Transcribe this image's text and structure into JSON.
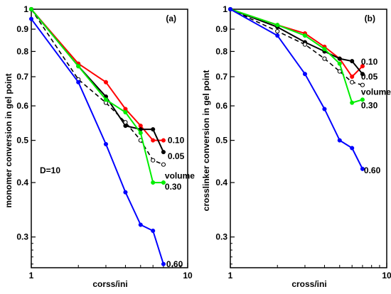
{
  "chart_data": [
    {
      "type": "line",
      "panel_tag": "(a)",
      "xlabel": "corss/ini",
      "ylabel": "monomer conversion in gel point",
      "x_scale": "log",
      "y_scale": "log",
      "xlim": [
        1,
        10
      ],
      "ylim": [
        0.255,
        1.0
      ],
      "x_ticks": [
        1,
        10
      ],
      "y_ticks": [
        0.3,
        0.4,
        0.5,
        0.6,
        0.7,
        0.8,
        0.9,
        1
      ],
      "y_tick_labels": [
        "0.3",
        "0.4",
        "0.5",
        "0.6",
        "0.7",
        "0.8",
        "0.9",
        "1"
      ],
      "annotation": "D=10",
      "grid": false,
      "series": [
        {
          "name": "0.10",
          "color": "#ff0000",
          "style": "solid",
          "marker": "dot",
          "x": [
            1,
            2,
            3,
            4,
            5,
            6,
            7
          ],
          "y": [
            1.0,
            0.75,
            0.68,
            0.59,
            0.54,
            0.5,
            0.5
          ]
        },
        {
          "name": "0.05",
          "color": "#000000",
          "style": "solid",
          "marker": "dot",
          "x": [
            1,
            2,
            3,
            4,
            5,
            6,
            7
          ],
          "y": [
            1.0,
            0.74,
            0.63,
            0.54,
            0.53,
            0.53,
            0.47
          ]
        },
        {
          "name": "volume",
          "color": "#000000",
          "style": "dashed",
          "marker": "open-circle",
          "x": [
            1,
            2,
            3,
            4,
            5,
            6,
            7
          ],
          "y": [
            1.0,
            0.69,
            0.61,
            0.55,
            0.5,
            0.45,
            0.44
          ]
        },
        {
          "name": "0.30",
          "color": "#00ee00",
          "style": "solid",
          "marker": "dot",
          "x": [
            1,
            2,
            3,
            4,
            5,
            6,
            7
          ],
          "y": [
            1.0,
            0.74,
            0.62,
            0.58,
            0.52,
            0.4,
            0.4
          ]
        },
        {
          "name": "0.60",
          "color": "#0000ff",
          "style": "solid",
          "marker": "dot",
          "x": [
            1,
            2,
            3,
            4,
            5,
            6,
            7
          ],
          "y": [
            0.95,
            0.68,
            0.49,
            0.38,
            0.32,
            0.31,
            0.26
          ]
        }
      ]
    },
    {
      "type": "line",
      "panel_tag": "(b)",
      "xlabel": "cross/ini",
      "ylabel": "crosslinker conversion in gel point",
      "x_scale": "log",
      "y_scale": "log",
      "xlim": [
        1,
        10
      ],
      "ylim": [
        0.255,
        1.0
      ],
      "x_ticks": [
        1,
        10
      ],
      "y_ticks": [
        0.3,
        0.4,
        0.5,
        0.6,
        0.7,
        0.8,
        0.9,
        1
      ],
      "y_tick_labels": [
        "0.3",
        "0.4",
        "0.5",
        "0.6",
        "0.7",
        "0.8",
        "0.9",
        "1"
      ],
      "grid": false,
      "series": [
        {
          "name": "0.10",
          "color": "#ff0000",
          "style": "solid",
          "marker": "dot",
          "x": [
            1,
            2,
            3,
            4,
            5,
            6,
            7
          ],
          "y": [
            1.0,
            0.92,
            0.88,
            0.82,
            0.77,
            0.7,
            0.74
          ]
        },
        {
          "name": "0.05",
          "color": "#000000",
          "style": "solid",
          "marker": "dot",
          "x": [
            1,
            2,
            3,
            4,
            5,
            6,
            7
          ],
          "y": [
            1.0,
            0.91,
            0.84,
            0.8,
            0.77,
            0.76,
            0.71
          ]
        },
        {
          "name": "volume",
          "color": "#000000",
          "style": "dashed",
          "marker": "open-circle",
          "x": [
            1,
            2,
            3,
            4,
            5,
            6,
            7
          ],
          "y": [
            1.0,
            0.89,
            0.83,
            0.77,
            0.72,
            0.68,
            0.67
          ]
        },
        {
          "name": "0.30",
          "color": "#00ee00",
          "style": "solid",
          "marker": "dot",
          "x": [
            1,
            2,
            3,
            4,
            5,
            6,
            7
          ],
          "y": [
            1.0,
            0.92,
            0.87,
            0.81,
            0.75,
            0.61,
            0.62
          ]
        },
        {
          "name": "0.60",
          "color": "#0000ff",
          "style": "solid",
          "marker": "dot",
          "x": [
            1,
            2,
            3,
            4,
            5,
            6,
            7
          ],
          "y": [
            1.0,
            0.87,
            0.71,
            0.59,
            0.5,
            0.48,
            0.43
          ]
        }
      ]
    }
  ]
}
